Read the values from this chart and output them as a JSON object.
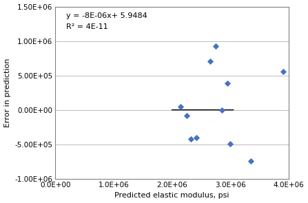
{
  "x_data": [
    2150000.0,
    2250000.0,
    2320000.0,
    2420000.0,
    2650000.0,
    2750000.0,
    2850000.0,
    2950000.0,
    3000000.0,
    3350000.0,
    3900000.0
  ],
  "y_data": [
    50000,
    -80000,
    -420000,
    -400000,
    710000,
    930000,
    0,
    390000,
    -490000,
    -740000,
    555000
  ],
  "trend_x_start": 2000000.0,
  "trend_x_end": 3050000.0,
  "slope": -8e-06,
  "intercept": 5.9484,
  "equation_text": "y = -8E-06x+ 5.9484",
  "r2_text": "R² = 4E-11",
  "xlabel": "Predicted elastic modulus, psi",
  "ylabel": "Error in prediction",
  "xlim_min": 0,
  "xlim_max": 4000000.0,
  "ylim_min": -1000000.0,
  "ylim_max": 1500000.0,
  "xticks": [
    0,
    1000000.0,
    2000000.0,
    3000000.0,
    4000000.0
  ],
  "yticks": [
    -1000000.0,
    -500000.0,
    0,
    500000.0,
    1000000.0,
    1500000.0
  ],
  "marker_color": "#4472C4",
  "trend_color": "#000000",
  "label_fontsize": 8,
  "tick_fontsize": 7.5,
  "annot_fontsize": 8
}
